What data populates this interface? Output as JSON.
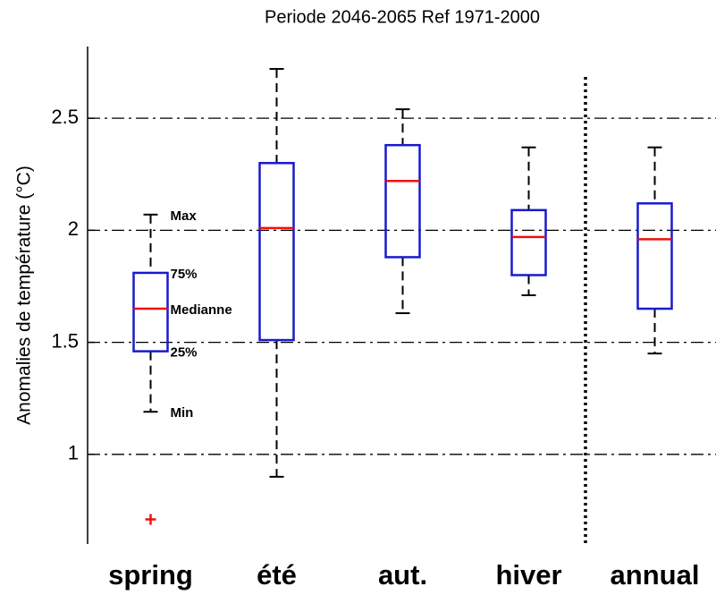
{
  "chart_data": {
    "type": "box",
    "title": "Periode 2046-2065  Ref 1971-2000",
    "y_label": "Anomalies de température (°C)",
    "categories": [
      "spring",
      "été",
      "aut.",
      "hiver",
      "annual"
    ],
    "boxes": [
      {
        "min": 1.19,
        "q1": 1.46,
        "median": 1.65,
        "q3": 1.81,
        "max": 2.07
      },
      {
        "min": 0.9,
        "q1": 1.51,
        "median": 2.01,
        "q3": 2.3,
        "max": 2.72
      },
      {
        "min": 1.63,
        "q1": 1.88,
        "median": 2.22,
        "q3": 2.38,
        "max": 2.54
      },
      {
        "min": 1.71,
        "q1": 1.8,
        "median": 1.97,
        "q3": 2.09,
        "max": 2.37
      },
      {
        "min": 1.45,
        "q1": 1.65,
        "median": 1.96,
        "q3": 2.12,
        "max": 2.37
      }
    ],
    "outliers": [
      [
        0.71
      ],
      [],
      [],
      [],
      []
    ],
    "annotations": [
      "Max",
      "75%",
      "Medianne",
      "25%",
      "Min"
    ],
    "box_color": "#1a1acc",
    "median_color": "#ee1111",
    "whisker_color": "#000000",
    "outlier_color": "#ee1111",
    "ylim": [
      0.6,
      2.82
    ],
    "yticks": [
      1,
      1.5,
      2,
      2.5
    ],
    "grid": true
  }
}
